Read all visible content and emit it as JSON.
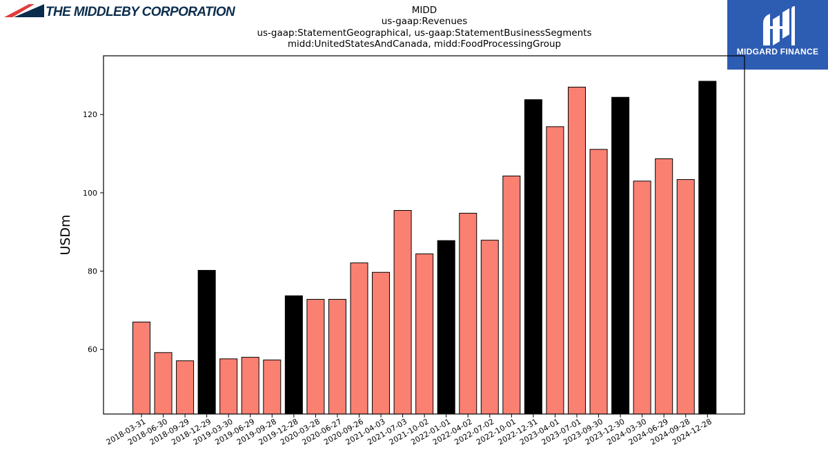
{
  "header": {
    "company_name": "THE MIDDLEBY CORPORATION",
    "brand_name": "MIDGARD FINANCE",
    "logo_colors": {
      "red": "#e03c3c",
      "navy": "#0b2d4d",
      "brand_bg": "#2d5cb3"
    }
  },
  "chart_data": {
    "type": "bar",
    "title_lines": [
      "MIDD",
      "us-gaap:Revenues",
      "us-gaap:StatementGeographical, us-gaap:StatementBusinessSegments",
      "midd:UnitedStatesAndCanada, midd:FoodProcessingGroup"
    ],
    "xlabel": "",
    "ylabel": "USDm",
    "ylim": [
      43.5,
      135
    ],
    "yticks": [
      60,
      80,
      100,
      120
    ],
    "grid": false,
    "colors": {
      "quarter": "#fa8072",
      "year_end": "#000000"
    },
    "categories": [
      "2018-03-31",
      "2018-06-30",
      "2018-09-29",
      "2018-12-29",
      "2019-03-30",
      "2019-06-29",
      "2019-09-28",
      "2019-12-28",
      "2020-03-28",
      "2020-06-27",
      "2020-09-26",
      "2021-04-03",
      "2021-07-03",
      "2021-10-02",
      "2022-01-01",
      "2022-04-02",
      "2022-07-02",
      "2022-10-01",
      "2022-12-31",
      "2023-04-01",
      "2023-07-01",
      "2023-09-30",
      "2023-12-30",
      "2024-03-30",
      "2024-06-29",
      "2024-09-28",
      "2024-12-28"
    ],
    "values": [
      67.0,
      59.2,
      57.1,
      80.2,
      57.6,
      58.0,
      57.3,
      73.7,
      72.8,
      72.8,
      82.1,
      79.7,
      95.5,
      84.4,
      87.8,
      94.8,
      87.9,
      104.3,
      123.8,
      116.9,
      127.0,
      111.1,
      124.4,
      103.0,
      108.7,
      103.4,
      128.5
    ],
    "year_end": [
      false,
      false,
      false,
      true,
      false,
      false,
      false,
      true,
      false,
      false,
      false,
      false,
      false,
      false,
      true,
      false,
      false,
      false,
      true,
      false,
      false,
      false,
      true,
      false,
      false,
      false,
      true
    ]
  }
}
